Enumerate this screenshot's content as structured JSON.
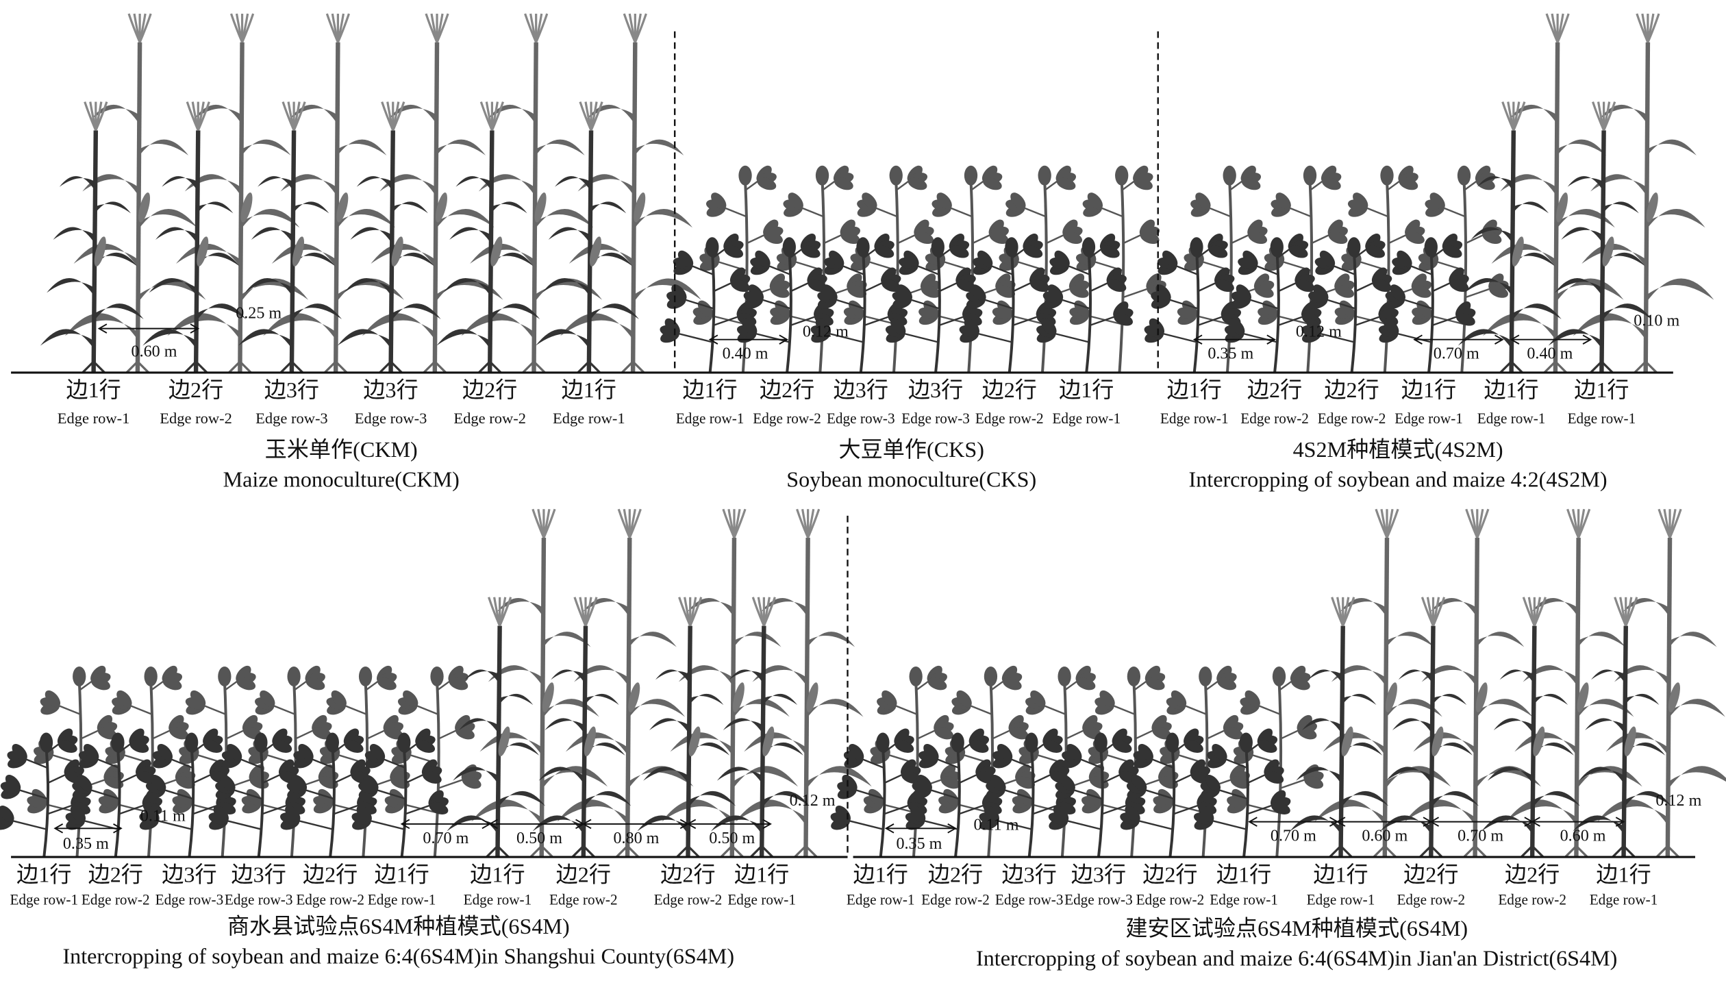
{
  "panels": [
    {
      "rows": [
        {
          "zh": "边1行",
          "en": "Edge row-1"
        },
        {
          "zh": "边2行",
          "en": "Edge row-2"
        },
        {
          "zh": "边3行",
          "en": "Edge row-3"
        },
        {
          "zh": "边3行",
          "en": "Edge row-3"
        },
        {
          "zh": "边2行",
          "en": "Edge row-2"
        },
        {
          "zh": "边1行",
          "en": "Edge row-1"
        }
      ],
      "spacings": [
        "0.60 m",
        "0.25 m"
      ],
      "caption_zh": "玉米单作(CKM)",
      "caption_en": "Maize monoculture(CKM)"
    },
    {
      "rows": [
        {
          "zh": "边1行",
          "en": "Edge row-1"
        },
        {
          "zh": "边2行",
          "en": "Edge row-2"
        },
        {
          "zh": "边3行",
          "en": "Edge row-3"
        },
        {
          "zh": "边3行",
          "en": "Edge row-3"
        },
        {
          "zh": "边2行",
          "en": "Edge row-2"
        },
        {
          "zh": "边1行",
          "en": "Edge row-1"
        }
      ],
      "spacings": [
        "0.40 m",
        "0.12 m"
      ],
      "caption_zh": "大豆单作(CKS)",
      "caption_en": "Soybean monoculture(CKS)"
    },
    {
      "rows": [
        {
          "zh": "边1行",
          "en": "Edge row-1"
        },
        {
          "zh": "边2行",
          "en": "Edge row-2"
        },
        {
          "zh": "边2行",
          "en": "Edge row-2"
        },
        {
          "zh": "边1行",
          "en": "Edge row-1"
        },
        {
          "zh": "边1行",
          "en": "Edge row-1"
        },
        {
          "zh": "边1行",
          "en": "Edge row-1"
        }
      ],
      "spacings": [
        "0.35 m",
        "0.12 m",
        "0.70 m",
        "0.40 m",
        "0.10 m"
      ],
      "caption_zh": "4S2M种植模式(4S2M)",
      "caption_en": "Intercropping of soybean and maize 4:2(4S2M)"
    },
    {
      "rows": [
        {
          "zh": "边1行",
          "en": "Edge row-1"
        },
        {
          "zh": "边2行",
          "en": "Edge row-2"
        },
        {
          "zh": "边3行",
          "en": "Edge row-3"
        },
        {
          "zh": "边3行",
          "en": "Edge row-3"
        },
        {
          "zh": "边2行",
          "en": "Edge row-2"
        },
        {
          "zh": "边1行",
          "en": "Edge row-1"
        },
        {
          "zh": "边1行",
          "en": "Edge row-1"
        },
        {
          "zh": "边2行",
          "en": "Edge row-2"
        },
        {
          "zh": "边2行",
          "en": "Edge row-2"
        },
        {
          "zh": "边1行",
          "en": "Edge row-1"
        }
      ],
      "spacings": [
        "0.35 m",
        "0.11 m",
        "0.70 m",
        "0.50 m",
        "0.80 m",
        "0.50 m",
        "0.12 m"
      ],
      "caption_zh": "商水县试验点6S4M种植模式(6S4M)",
      "caption_en": "Intercropping of soybean and maize 6:4(6S4M)in Shangshui County(6S4M)"
    },
    {
      "rows": [
        {
          "zh": "边1行",
          "en": "Edge row-1"
        },
        {
          "zh": "边2行",
          "en": "Edge row-2"
        },
        {
          "zh": "边3行",
          "en": "Edge row-3"
        },
        {
          "zh": "边3行",
          "en": "Edge row-3"
        },
        {
          "zh": "边2行",
          "en": "Edge row-2"
        },
        {
          "zh": "边1行",
          "en": "Edge row-1"
        },
        {
          "zh": "边1行",
          "en": "Edge row-1"
        },
        {
          "zh": "边2行",
          "en": "Edge row-2"
        },
        {
          "zh": "边2行",
          "en": "Edge row-2"
        },
        {
          "zh": "边1行",
          "en": "Edge row-1"
        }
      ],
      "spacings": [
        "0.35 m",
        "0.11 m",
        "0.70 m",
        "0.60 m",
        "0.70 m",
        "0.60 m",
        "0.12 m"
      ],
      "caption_zh": "建安区试验点6S4M种植模式(6S4M)",
      "caption_en": "Intercropping of soybean and maize 6:4(6S4M)in Jian'an District(6S4M)"
    }
  ]
}
